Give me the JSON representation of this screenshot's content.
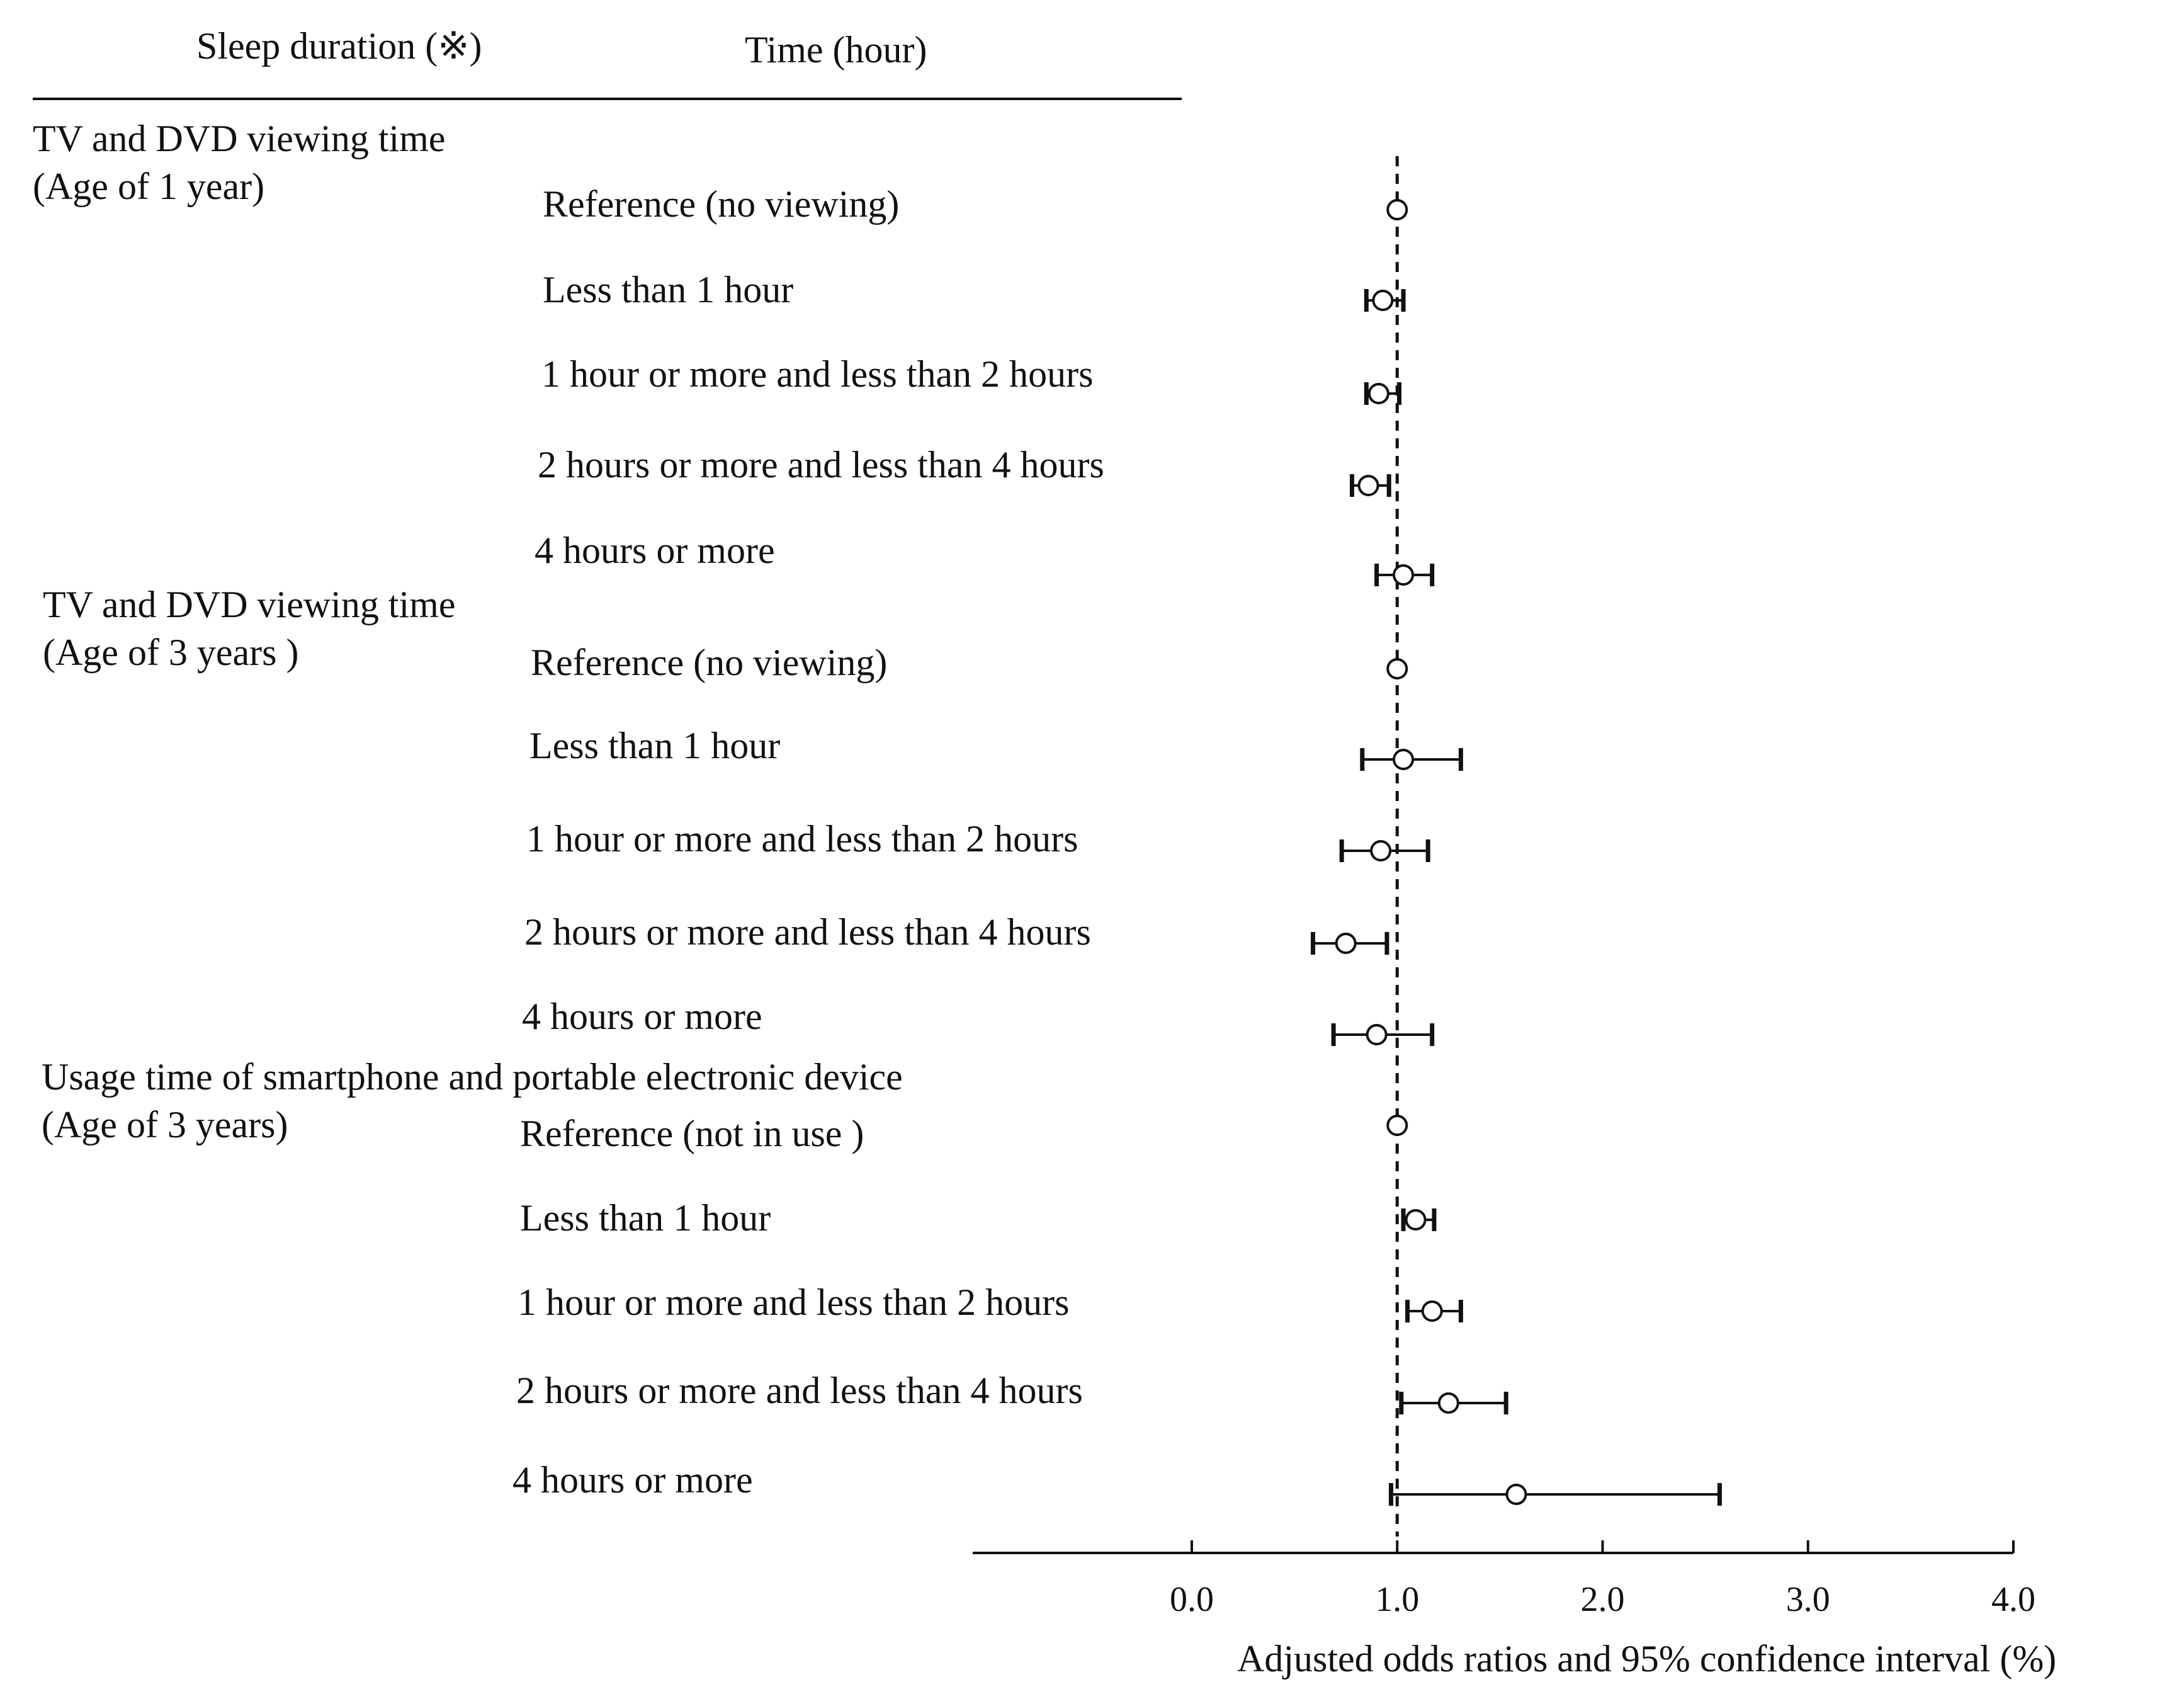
{
  "header": {
    "col1": "Sleep duration (※)",
    "col2": "Time (hour)"
  },
  "groups": [
    {
      "label_line1": "TV and DVD viewing time",
      "label_line2": "(Age of 1 year)",
      "rows": [
        "Reference (no viewing)",
        "Less than 1 hour",
        "1 hour or more and less than 2 hours",
        "2 hours or more and less than 4 hours",
        "4 hours or more"
      ]
    },
    {
      "label_line1": "TV and DVD viewing time",
      "label_line2": "(Age of 3 years )",
      "rows": [
        "Reference (no viewing)",
        "Less than 1 hour",
        "1 hour or more and less than 2 hours",
        "2 hours or more and less than 4 hours",
        "4 hours or more"
      ]
    },
    {
      "label_line1": "Usage time of smartphone and portable electronic device",
      "label_line2": "(Age of 3 years)",
      "rows": [
        "Reference (not in use )",
        "Less than 1 hour",
        "1 hour or more and less than 2 hours",
        "2 hours or more and less than 4 hours",
        "4 hours or more"
      ]
    }
  ],
  "chart_data": {
    "type": "scatter",
    "subtype": "forest-plot",
    "xlabel": "Adjusted  odds  ratios and 95% confidence interval (%)",
    "xlim": [
      0.0,
      4.0
    ],
    "xticks": [
      "0.0",
      "1.0",
      "2.0",
      "3.0",
      "4.0"
    ],
    "reference_line": 1.0,
    "reference_line_style": "dashed",
    "categories": [
      "Age 1 TV/DVD: Reference (no viewing)",
      "Age 1 TV/DVD: Less than 1 hour",
      "Age 1 TV/DVD: 1 hour or more and less than 2 hours",
      "Age 1 TV/DVD: 2 hours or more and less than 4 hours",
      "Age 1 TV/DVD: 4 hours or more",
      "Age 3 TV/DVD: Reference (no viewing)",
      "Age 3 TV/DVD: Less than 1 hour",
      "Age 3 TV/DVD: 1 hour or more and less than 2 hours",
      "Age 3 TV/DVD: 2 hours or more and less than 4 hours",
      "Age 3 TV/DVD: 4 hours or more",
      "Age 3 smartphone: Reference (not in use )",
      "Age 3 smartphone: Less than 1 hour",
      "Age 3 smartphone: 1 hour or more and less than 2 hours",
      "Age 3 smartphone: 2 hours or more and less than 4 hours",
      "Age 3 smartphone: 4 hours or more"
    ],
    "points": [
      {
        "or": 1.0,
        "lo": 1.0,
        "hi": 1.0
      },
      {
        "or": 0.93,
        "lo": 0.85,
        "hi": 1.03
      },
      {
        "or": 0.91,
        "lo": 0.85,
        "hi": 1.01
      },
      {
        "or": 0.86,
        "lo": 0.78,
        "hi": 0.96
      },
      {
        "or": 1.03,
        "lo": 0.9,
        "hi": 1.17
      },
      {
        "or": 1.0,
        "lo": 1.0,
        "hi": 1.0
      },
      {
        "or": 1.03,
        "lo": 0.83,
        "hi": 1.31
      },
      {
        "or": 0.92,
        "lo": 0.73,
        "hi": 1.15
      },
      {
        "or": 0.75,
        "lo": 0.59,
        "hi": 0.95
      },
      {
        "or": 0.9,
        "lo": 0.69,
        "hi": 1.17
      },
      {
        "or": 1.0,
        "lo": 1.0,
        "hi": 1.0
      },
      {
        "or": 1.09,
        "lo": 1.03,
        "hi": 1.18
      },
      {
        "or": 1.17,
        "lo": 1.05,
        "hi": 1.31
      },
      {
        "or": 1.25,
        "lo": 1.02,
        "hi": 1.53
      },
      {
        "or": 1.58,
        "lo": 0.97,
        "hi": 2.57
      }
    ]
  }
}
